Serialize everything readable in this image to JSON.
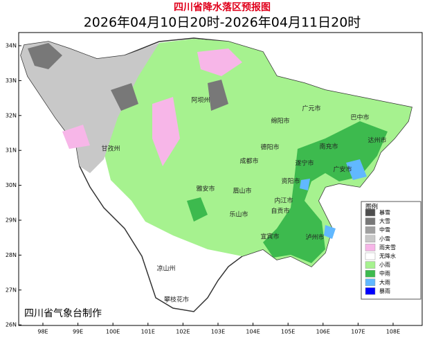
{
  "title": "四川省降水落区预报图",
  "subtitle": "2026年04月10日20时-2026年04月11日20时",
  "lat_labels": [
    "34N",
    "33N",
    "32N",
    "31N",
    "30N",
    "29N",
    "28N",
    "27N",
    "26N"
  ],
  "lon_labels": [
    "98E",
    "99E",
    "100E",
    "101E",
    "102E",
    "103E",
    "104E",
    "105E",
    "106E",
    "107E",
    "108E"
  ],
  "legend": {
    "title": "图例",
    "items": [
      {
        "label": "暴雪",
        "color": "#4d4d4d"
      },
      {
        "label": "大雪",
        "color": "#787878"
      },
      {
        "label": "中雪",
        "color": "#a0a0a0"
      },
      {
        "label": "小雪",
        "color": "#c8c8c8"
      },
      {
        "label": "雨夹雪",
        "color": "#f7b6e8"
      },
      {
        "label": "无降水",
        "color": "#ffffff"
      },
      {
        "label": "小雨",
        "color": "#a6f28f"
      },
      {
        "label": "中雨",
        "color": "#3dba4e"
      },
      {
        "label": "大雨",
        "color": "#61b8ff"
      },
      {
        "label": "暴雨",
        "color": "#0000fe"
      }
    ]
  },
  "regions": [
    "阿坝州",
    "甘孜州",
    "广元市",
    "巴中市",
    "绵阳市",
    "达州市",
    "德阳市",
    "南充市",
    "成都市",
    "遂宁市",
    "广安市",
    "雅安市",
    "眉山市",
    "资阳市",
    "内江市",
    "乐山市",
    "自贡市",
    "宜宾市",
    "泸州市",
    "凉山州",
    "攀枝花市"
  ],
  "credit": "四川省气象台制作"
}
